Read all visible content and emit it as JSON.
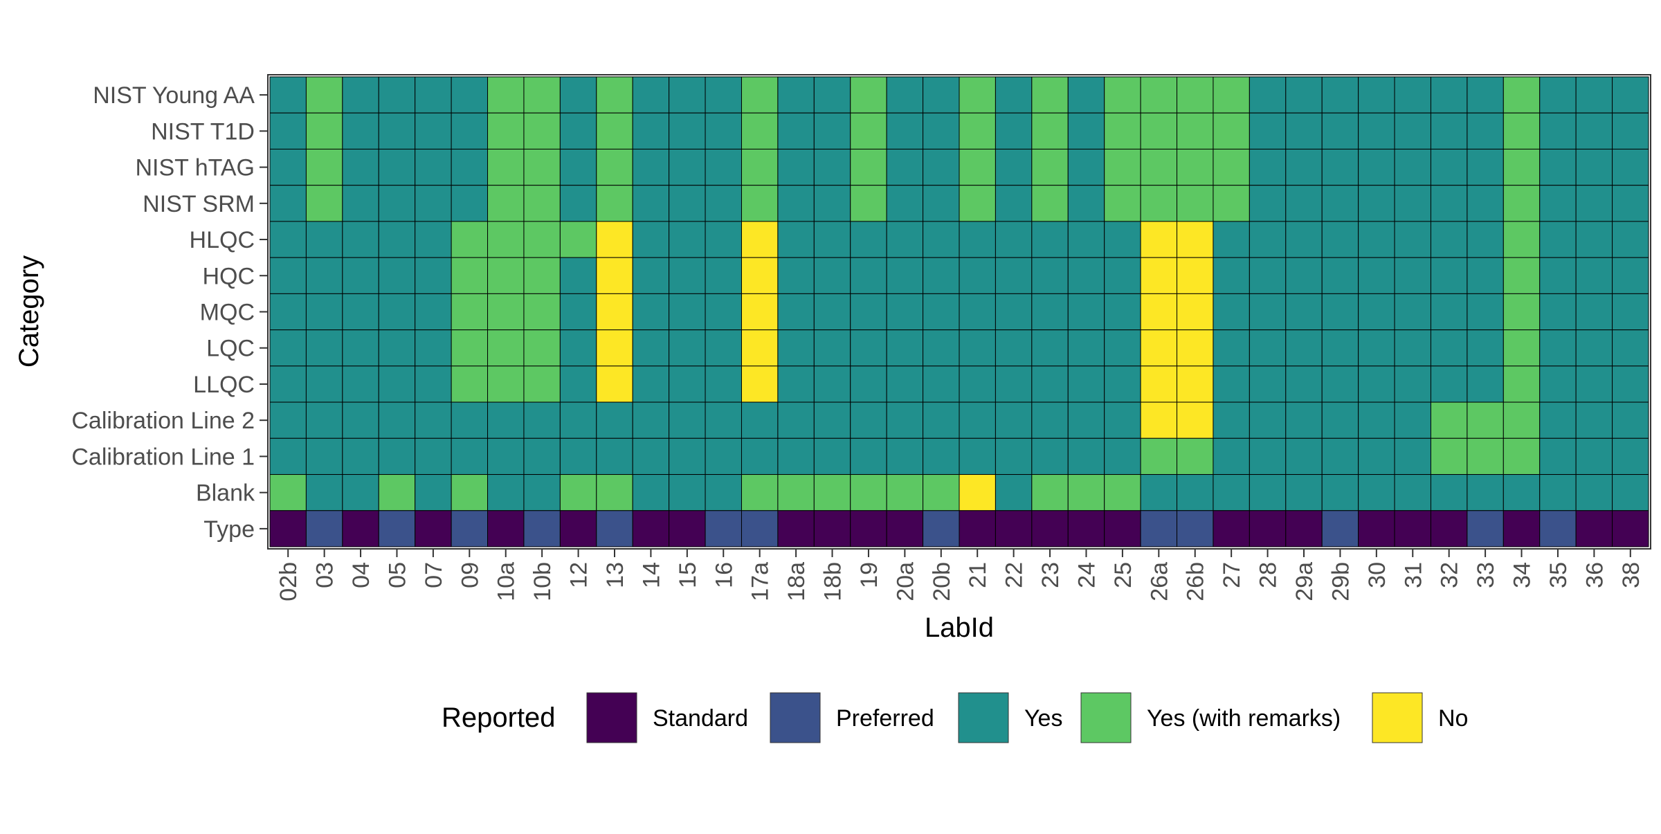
{
  "chart_data": {
    "type": "heatmap",
    "xlabel": "LabId",
    "ylabel": "Category",
    "x": [
      "02b",
      "03",
      "04",
      "05",
      "07",
      "09",
      "10a",
      "10b",
      "12",
      "13",
      "14",
      "15",
      "16",
      "17a",
      "18a",
      "18b",
      "19",
      "20a",
      "20b",
      "21",
      "22",
      "23",
      "24",
      "25",
      "26a",
      "26b",
      "27",
      "28",
      "29a",
      "29b",
      "30",
      "31",
      "32",
      "33",
      "34",
      "35",
      "36",
      "38"
    ],
    "y": [
      "NIST Young AA",
      "NIST T1D",
      "NIST hTAG",
      "NIST SRM",
      "HLQC",
      "HQC",
      "MQC",
      "LQC",
      "LLQC",
      "Calibration Line 2",
      "Calibration Line 1",
      "Blank",
      "Type"
    ],
    "codes": {
      "S": "Standard",
      "P": "Preferred",
      "Y": "Yes",
      "R": "Yes (with remarks)",
      "N": "No"
    },
    "values": [
      [
        "Y",
        "R",
        "Y",
        "Y",
        "Y",
        "Y",
        "R",
        "R",
        "Y",
        "R",
        "Y",
        "Y",
        "Y",
        "R",
        "Y",
        "Y",
        "R",
        "Y",
        "Y",
        "R",
        "Y",
        "R",
        "Y",
        "R",
        "R",
        "R",
        "R",
        "Y",
        "Y",
        "Y",
        "Y",
        "Y",
        "Y",
        "Y",
        "R",
        "Y",
        "Y",
        "Y"
      ],
      [
        "Y",
        "R",
        "Y",
        "Y",
        "Y",
        "Y",
        "R",
        "R",
        "Y",
        "R",
        "Y",
        "Y",
        "Y",
        "R",
        "Y",
        "Y",
        "R",
        "Y",
        "Y",
        "R",
        "Y",
        "R",
        "Y",
        "R",
        "R",
        "R",
        "R",
        "Y",
        "Y",
        "Y",
        "Y",
        "Y",
        "Y",
        "Y",
        "R",
        "Y",
        "Y",
        "Y"
      ],
      [
        "Y",
        "R",
        "Y",
        "Y",
        "Y",
        "Y",
        "R",
        "R",
        "Y",
        "R",
        "Y",
        "Y",
        "Y",
        "R",
        "Y",
        "Y",
        "R",
        "Y",
        "Y",
        "R",
        "Y",
        "R",
        "Y",
        "R",
        "R",
        "R",
        "R",
        "Y",
        "Y",
        "Y",
        "Y",
        "Y",
        "Y",
        "Y",
        "R",
        "Y",
        "Y",
        "Y"
      ],
      [
        "Y",
        "R",
        "Y",
        "Y",
        "Y",
        "Y",
        "R",
        "R",
        "Y",
        "R",
        "Y",
        "Y",
        "Y",
        "R",
        "Y",
        "Y",
        "R",
        "Y",
        "Y",
        "R",
        "Y",
        "R",
        "Y",
        "R",
        "R",
        "R",
        "R",
        "Y",
        "Y",
        "Y",
        "Y",
        "Y",
        "Y",
        "Y",
        "R",
        "Y",
        "Y",
        "Y"
      ],
      [
        "Y",
        "Y",
        "Y",
        "Y",
        "Y",
        "R",
        "R",
        "R",
        "R",
        "N",
        "Y",
        "Y",
        "Y",
        "N",
        "Y",
        "Y",
        "Y",
        "Y",
        "Y",
        "Y",
        "Y",
        "Y",
        "Y",
        "Y",
        "N",
        "N",
        "Y",
        "Y",
        "Y",
        "Y",
        "Y",
        "Y",
        "Y",
        "Y",
        "R",
        "Y",
        "Y",
        "Y"
      ],
      [
        "Y",
        "Y",
        "Y",
        "Y",
        "Y",
        "R",
        "R",
        "R",
        "Y",
        "N",
        "Y",
        "Y",
        "Y",
        "N",
        "Y",
        "Y",
        "Y",
        "Y",
        "Y",
        "Y",
        "Y",
        "Y",
        "Y",
        "Y",
        "N",
        "N",
        "Y",
        "Y",
        "Y",
        "Y",
        "Y",
        "Y",
        "Y",
        "Y",
        "R",
        "Y",
        "Y",
        "Y"
      ],
      [
        "Y",
        "Y",
        "Y",
        "Y",
        "Y",
        "R",
        "R",
        "R",
        "Y",
        "N",
        "Y",
        "Y",
        "Y",
        "N",
        "Y",
        "Y",
        "Y",
        "Y",
        "Y",
        "Y",
        "Y",
        "Y",
        "Y",
        "Y",
        "N",
        "N",
        "Y",
        "Y",
        "Y",
        "Y",
        "Y",
        "Y",
        "Y",
        "Y",
        "R",
        "Y",
        "Y",
        "Y"
      ],
      [
        "Y",
        "Y",
        "Y",
        "Y",
        "Y",
        "R",
        "R",
        "R",
        "Y",
        "N",
        "Y",
        "Y",
        "Y",
        "N",
        "Y",
        "Y",
        "Y",
        "Y",
        "Y",
        "Y",
        "Y",
        "Y",
        "Y",
        "Y",
        "N",
        "N",
        "Y",
        "Y",
        "Y",
        "Y",
        "Y",
        "Y",
        "Y",
        "Y",
        "R",
        "Y",
        "Y",
        "Y"
      ],
      [
        "Y",
        "Y",
        "Y",
        "Y",
        "Y",
        "R",
        "R",
        "R",
        "Y",
        "N",
        "Y",
        "Y",
        "Y",
        "N",
        "Y",
        "Y",
        "Y",
        "Y",
        "Y",
        "Y",
        "Y",
        "Y",
        "Y",
        "Y",
        "N",
        "N",
        "Y",
        "Y",
        "Y",
        "Y",
        "Y",
        "Y",
        "Y",
        "Y",
        "R",
        "Y",
        "Y",
        "Y"
      ],
      [
        "Y",
        "Y",
        "Y",
        "Y",
        "Y",
        "Y",
        "Y",
        "Y",
        "Y",
        "Y",
        "Y",
        "Y",
        "Y",
        "Y",
        "Y",
        "Y",
        "Y",
        "Y",
        "Y",
        "Y",
        "Y",
        "Y",
        "Y",
        "Y",
        "N",
        "N",
        "Y",
        "Y",
        "Y",
        "Y",
        "Y",
        "Y",
        "R",
        "R",
        "R",
        "Y",
        "Y",
        "Y"
      ],
      [
        "Y",
        "Y",
        "Y",
        "Y",
        "Y",
        "Y",
        "Y",
        "Y",
        "Y",
        "Y",
        "Y",
        "Y",
        "Y",
        "Y",
        "Y",
        "Y",
        "Y",
        "Y",
        "Y",
        "Y",
        "Y",
        "Y",
        "Y",
        "Y",
        "R",
        "R",
        "Y",
        "Y",
        "Y",
        "Y",
        "Y",
        "Y",
        "R",
        "R",
        "R",
        "Y",
        "Y",
        "Y"
      ],
      [
        "R",
        "Y",
        "Y",
        "R",
        "Y",
        "R",
        "Y",
        "Y",
        "R",
        "R",
        "Y",
        "Y",
        "Y",
        "R",
        "R",
        "R",
        "R",
        "R",
        "R",
        "N",
        "Y",
        "R",
        "R",
        "R",
        "Y",
        "Y",
        "Y",
        "Y",
        "Y",
        "Y",
        "Y",
        "Y",
        "Y",
        "Y",
        "Y",
        "Y",
        "Y",
        "Y"
      ],
      [
        "S",
        "P",
        "S",
        "P",
        "S",
        "P",
        "S",
        "P",
        "S",
        "P",
        "S",
        "S",
        "P",
        "P",
        "S",
        "S",
        "S",
        "S",
        "P",
        "S",
        "S",
        "S",
        "S",
        "S",
        "P",
        "P",
        "S",
        "S",
        "S",
        "P",
        "S",
        "S",
        "S",
        "P",
        "S",
        "P",
        "S",
        "S"
      ]
    ],
    "legend": {
      "title": "Reported",
      "position": "bottom",
      "entries": [
        "Standard",
        "Preferred",
        "Yes",
        "Yes (with remarks)",
        "No"
      ]
    },
    "colors": {
      "Standard": "#440154",
      "Preferred": "#3b528b",
      "Yes": "#21908d",
      "Yes (with remarks)": "#5dc863",
      "No": "#fde725"
    },
    "grid": false
  }
}
